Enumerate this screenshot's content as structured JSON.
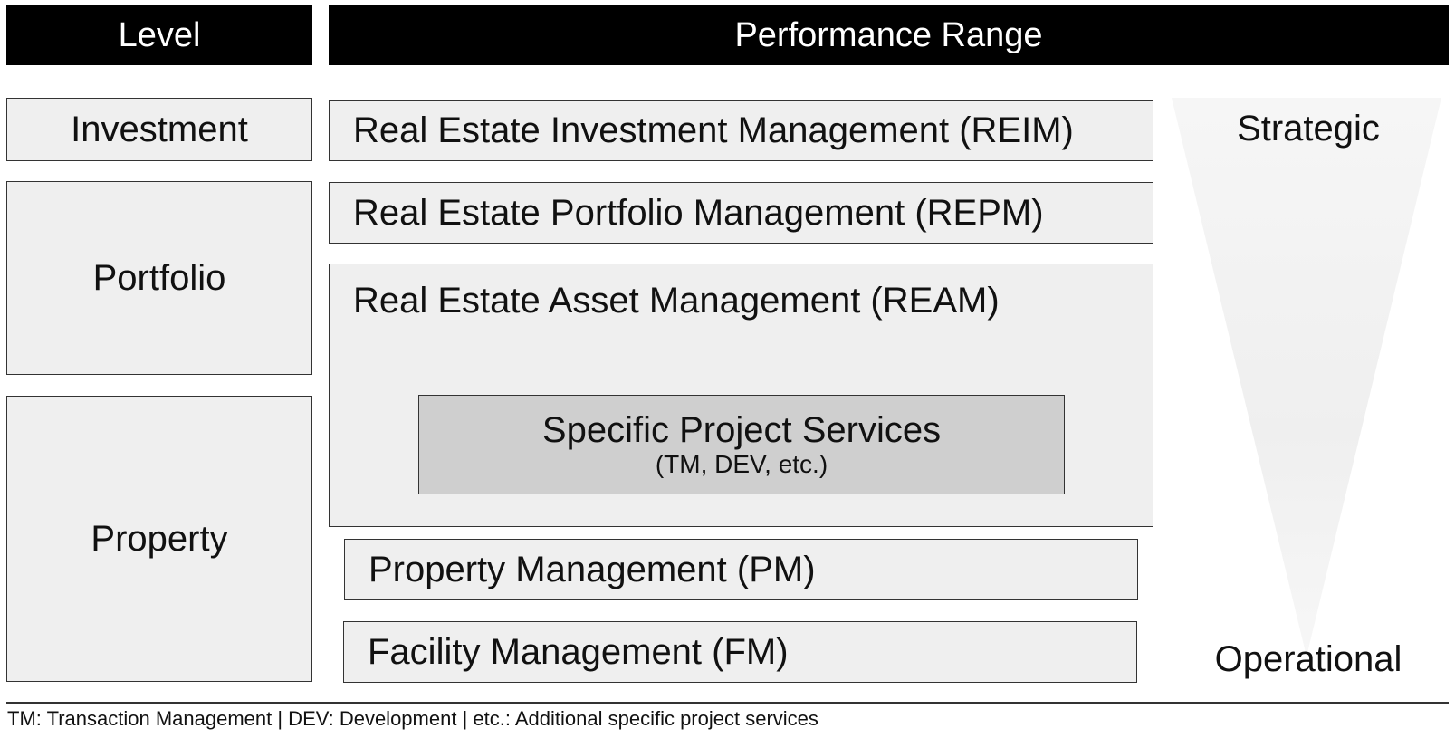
{
  "header": {
    "level": "Level",
    "range": "Performance Range"
  },
  "levels": {
    "investment": "Investment",
    "portfolio": "Portfolio",
    "property": "Property"
  },
  "ranges": {
    "reim": "Real Estate Investment Management (REIM)",
    "repm": "Real Estate Portfolio Management (REPM)",
    "ream": "Real Estate Asset Management (REAM)",
    "sps_title": "Specific Project Services",
    "sps_sub": "(TM, DEV, etc.)",
    "pm": "Property Management (PM)",
    "fm": "Facility Management (FM)"
  },
  "scale": {
    "top": "Strategic",
    "bottom": "Operational"
  },
  "footnote": "TM: Transaction Management | DEV: Development | etc.: Additional specific project services",
  "colors": {
    "header_bg": "#000000",
    "box_bg": "#efefef",
    "special_bg": "#cfcfcf",
    "border": "#333333"
  }
}
